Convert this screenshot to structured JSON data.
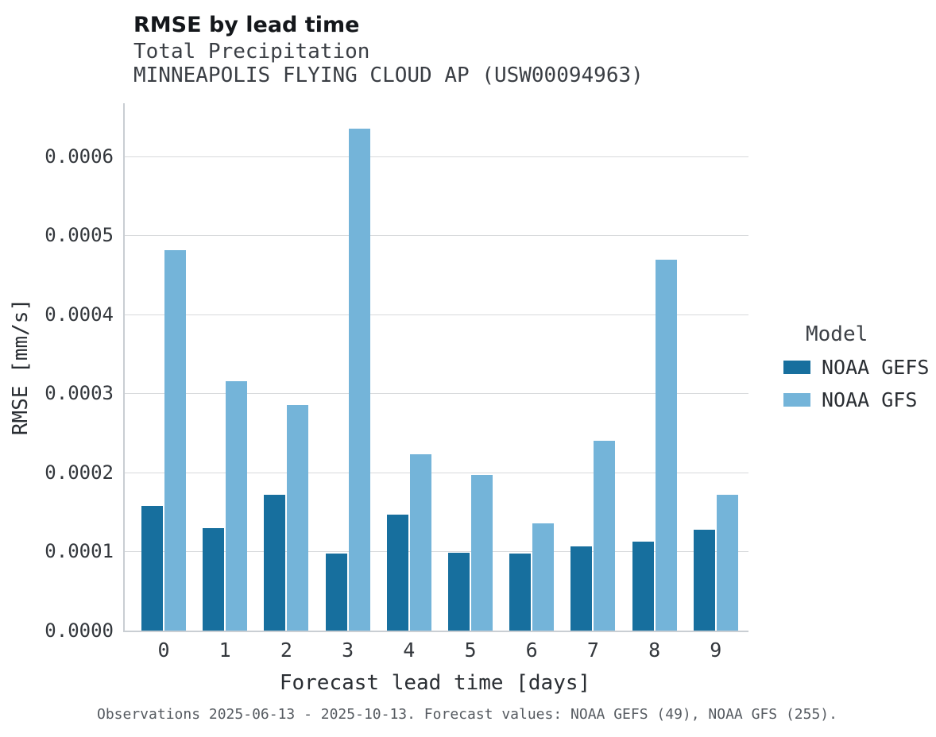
{
  "header": {
    "title": "RMSE by lead time",
    "subtitle_variable": "Total Precipitation",
    "subtitle_station": "MINNEAPOLIS FLYING CLOUD AP (USW00094963)"
  },
  "chart_data": {
    "type": "bar",
    "title": "RMSE by lead time",
    "subtitle": "Total Precipitation — MINNEAPOLIS FLYING CLOUD AP (USW00094963)",
    "xlabel": "Forecast lead time [days]",
    "ylabel": "RMSE [mm/s]",
    "categories": [
      "0",
      "1",
      "2",
      "3",
      "4",
      "5",
      "6",
      "7",
      "8",
      "9"
    ],
    "series": [
      {
        "name": "NOAA GEFS",
        "color": "#176f9e",
        "values": [
          0.000158,
          0.00013,
          0.000172,
          9.7e-05,
          0.000147,
          9.8e-05,
          9.7e-05,
          0.000107,
          0.000113,
          0.000128
        ]
      },
      {
        "name": "NOAA GFS",
        "color": "#74b4d9",
        "values": [
          0.000481,
          0.000315,
          0.000285,
          0.000635,
          0.000223,
          0.000197,
          0.000136,
          0.00024,
          0.000469,
          0.000172
        ]
      }
    ],
    "ylim": [
      0,
      0.000667
    ],
    "yticks": [
      0,
      0.0001,
      0.0002,
      0.0003,
      0.0004,
      0.0005,
      0.0006
    ],
    "ytick_labels": [
      "0.0000",
      "0.0001",
      "0.0002",
      "0.0003",
      "0.0004",
      "0.0005",
      "0.0006"
    ],
    "grid": true,
    "legend_position": "right"
  },
  "legend": {
    "title": "Model",
    "items": [
      {
        "label": "NOAA GEFS",
        "color": "#176f9e"
      },
      {
        "label": "NOAA GFS",
        "color": "#74b4d9"
      }
    ]
  },
  "footer": {
    "note": "Observations 2025-06-13 - 2025-10-13. Forecast values: NOAA GEFS (49), NOAA GFS (255)."
  }
}
